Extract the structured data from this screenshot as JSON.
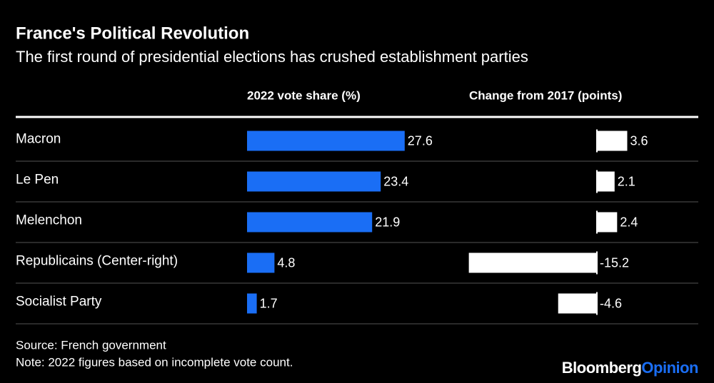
{
  "chart_data": {
    "type": "bar",
    "orientation": "horizontal",
    "title": "France's Political Revolution",
    "subtitle": "The first round of presidential elections has crushed establishment parties",
    "categories": [
      "Macron",
      "Le Pen",
      "Melenchon",
      "Republicains (Center-right)",
      "Socialist Party"
    ],
    "series": [
      {
        "name": "2022 vote share (%)",
        "color": "#1a6ef5",
        "values": [
          27.6,
          23.4,
          21.9,
          4.8,
          1.7
        ]
      },
      {
        "name": "Change from 2017 (points)",
        "color": "#ffffff",
        "values": [
          3.6,
          2.1,
          2.4,
          -15.2,
          -4.6
        ]
      }
    ],
    "source": "Source: French government",
    "note": "Note: 2022 figures based on incomplete vote count.",
    "brand": {
      "name": "Bloomberg",
      "suffix": "Opinion"
    }
  }
}
